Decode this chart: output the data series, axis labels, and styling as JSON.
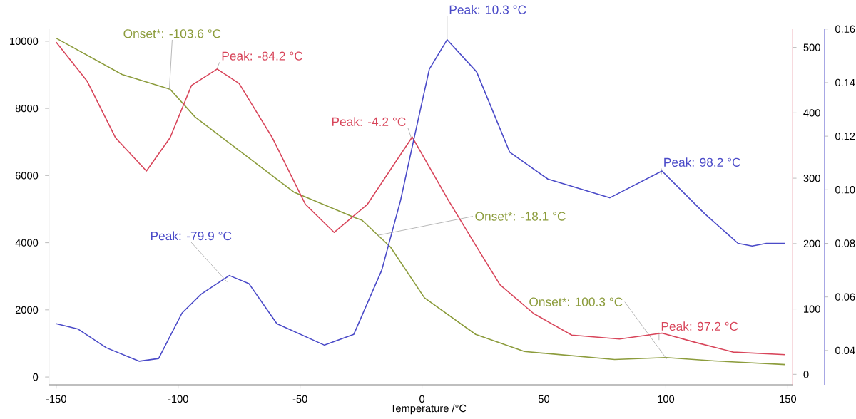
{
  "chart_data": {
    "type": "line",
    "xlabel": "Temperature /°C",
    "xlim": [
      -153,
      152
    ],
    "xticks": [
      -150,
      -100,
      -50,
      0,
      50,
      100,
      150
    ],
    "ylim": [
      -232,
      10380
    ],
    "yticks": [
      0,
      2000,
      4000,
      6000,
      8000,
      10000
    ],
    "y2lim": [
      -16,
      529
    ],
    "y2ticks": [
      0,
      100,
      200,
      300,
      400,
      500
    ],
    "y3lim": [
      0.0272,
      0.1602
    ],
    "y3ticks": [
      0.04,
      0.06,
      0.08,
      {
        "value": 0.1,
        "label": "0.10"
      },
      0.12,
      0.14,
      0.16
    ],
    "grid": false,
    "series": [
      {
        "color": "#8c9c3c",
        "x": [
          -150,
          -123,
          -103.3,
          -93,
          -52.6,
          -27.3,
          -24.6,
          -12.9,
          1,
          22,
          42,
          79,
          100,
          120,
          149
        ],
        "values": [
          10090,
          9010,
          8570,
          7740,
          5510,
          4740,
          4670,
          3870,
          2360,
          1270,
          760,
          520,
          580,
          480,
          370
        ]
      },
      {
        "color": "#d8455a",
        "axis": "y2",
        "x": [
          -150,
          -137.4,
          -125.7,
          -113,
          -103.3,
          -94.5,
          -84,
          -75,
          -61.4,
          -47.8,
          -36,
          -22.4,
          -4,
          10.7,
          22.4,
          32,
          45.8,
          61.4,
          81,
          98.4,
          112,
          127.7,
          149
        ],
        "values": [
          508,
          449,
          362,
          311,
          362,
          442,
          467,
          445,
          362,
          260,
          217,
          260,
          363,
          267,
          195,
          137,
          93,
          60,
          54,
          63,
          49,
          34,
          30
        ]
      },
      {
        "color": "#4a4ac8",
        "axis": "y3",
        "x": [
          -150,
          -141,
          -129.4,
          -115.9,
          -108,
          -98.4,
          -90.6,
          -79,
          -71,
          -59.5,
          -40,
          -28,
          -16.5,
          -8.8,
          -3.3,
          3,
          10.3,
          22.4,
          36,
          51.6,
          77,
          98.4,
          116,
          129.6,
          135.4,
          141.2,
          149
        ],
        "values": [
          0.05,
          0.048,
          0.041,
          0.036,
          0.037,
          0.054,
          0.061,
          0.068,
          0.065,
          0.05,
          0.042,
          0.046,
          0.07,
          0.096,
          0.119,
          0.145,
          0.156,
          0.144,
          0.114,
          0.104,
          0.097,
          0.107,
          0.091,
          0.08,
          0.079,
          0.08,
          0.08
        ]
      }
    ],
    "annotations": [
      {
        "text": "Onset*: -103.6 °C",
        "x": -103.6,
        "y": 8570
      },
      {
        "text": "Peak: -84.2 °C",
        "x": -84.2,
        "y": 9150
      },
      {
        "text": "Peak: -4.2 °C",
        "x": -4.2,
        "y": 7080
      },
      {
        "text": "Peak: 10.3 °C",
        "x": 10.3,
        "y": 10020
      },
      {
        "text": "Peak: 98.2 °C",
        "x": 98.2,
        "y": 6040
      },
      {
        "text": "Peak: -79.9 °C",
        "x": -79.9,
        "y": 2830
      },
      {
        "text": "Onset*: -18.1 °C",
        "x": -18.1,
        "y": 4220
      },
      {
        "text": "Onset*: 100.3 °C",
        "x": 100.3,
        "y": 540
      },
      {
        "text": "Peak: 97.2 °C",
        "x": 97.2,
        "y": 1100
      }
    ]
  }
}
